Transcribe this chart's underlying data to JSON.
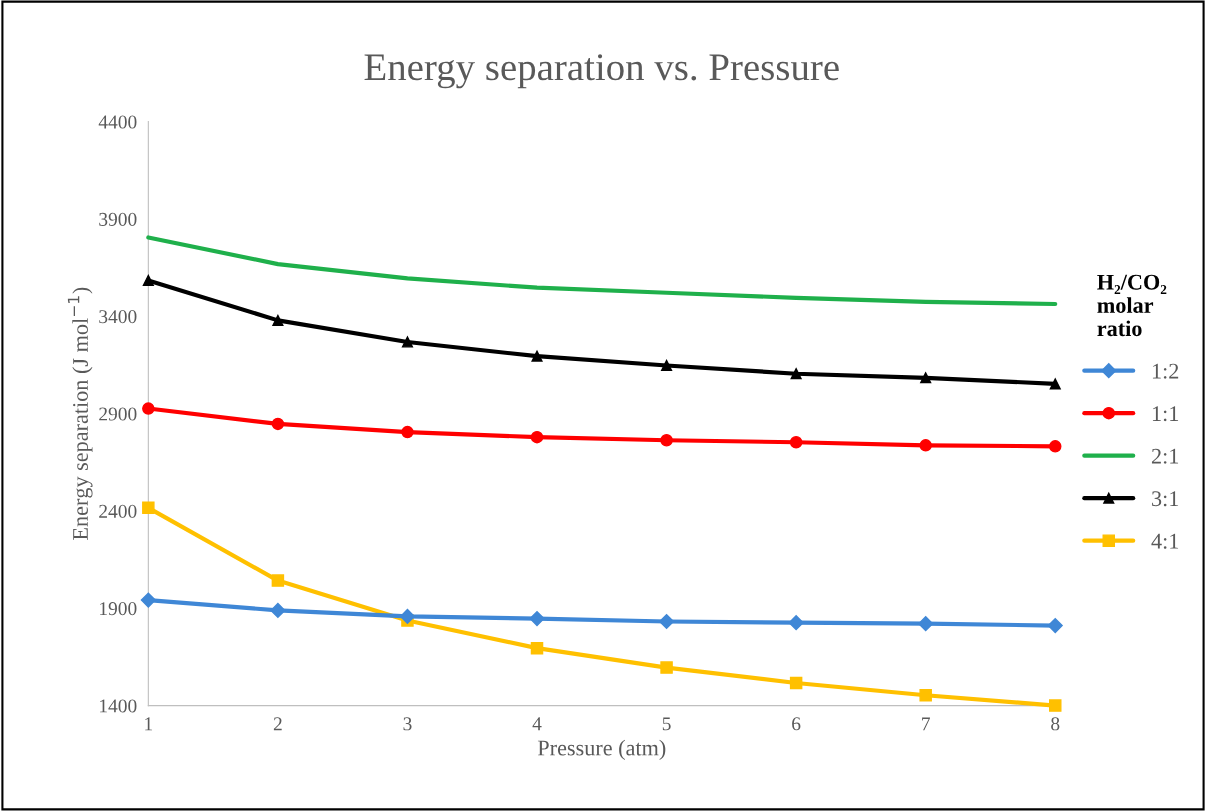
{
  "chart_data": {
    "type": "line",
    "title": "Energy separation vs. Pressure",
    "xlabel": "Pressure (atm)",
    "ylabel": "Energy separation (J mol$^{−1}$)",
    "legend_title": "H₂/CO₂\nmolar\nratio",
    "x": [
      1,
      2,
      3,
      4,
      5,
      6,
      7,
      8
    ],
    "series": [
      {
        "name": "1:2",
        "color": "#3f87d6",
        "marker": "diamond",
        "values": [
          1942,
          1889,
          1858,
          1847,
          1832,
          1826,
          1821,
          1811
        ]
      },
      {
        "name": "1:1",
        "color": "#ff0000",
        "marker": "circle",
        "values": [
          2926,
          2847,
          2805,
          2779,
          2763,
          2753,
          2737,
          2732
        ]
      },
      {
        "name": "2:1",
        "color": "#1fb04b",
        "marker": "none",
        "values": [
          3805,
          3668,
          3595,
          3547,
          3521,
          3495,
          3474,
          3463
        ]
      },
      {
        "name": "3:1",
        "color": "#000000",
        "marker": "triangle",
        "values": [
          3584,
          3379,
          3268,
          3195,
          3147,
          3105,
          3084,
          3053
        ]
      },
      {
        "name": "4:1",
        "color": "#ffc000",
        "marker": "square",
        "values": [
          2416,
          2042,
          1837,
          1695,
          1595,
          1516,
          1453,
          1400
        ]
      }
    ],
    "xlim": [
      1,
      8
    ],
    "xticks": [
      1,
      2,
      3,
      4,
      5,
      6,
      7,
      8
    ],
    "ylim": [
      1400,
      4400
    ],
    "yticks": [
      1400,
      1900,
      2400,
      2900,
      3400,
      3900,
      4400
    ],
    "grid": false,
    "legend": "right",
    "line_style": "solid"
  }
}
